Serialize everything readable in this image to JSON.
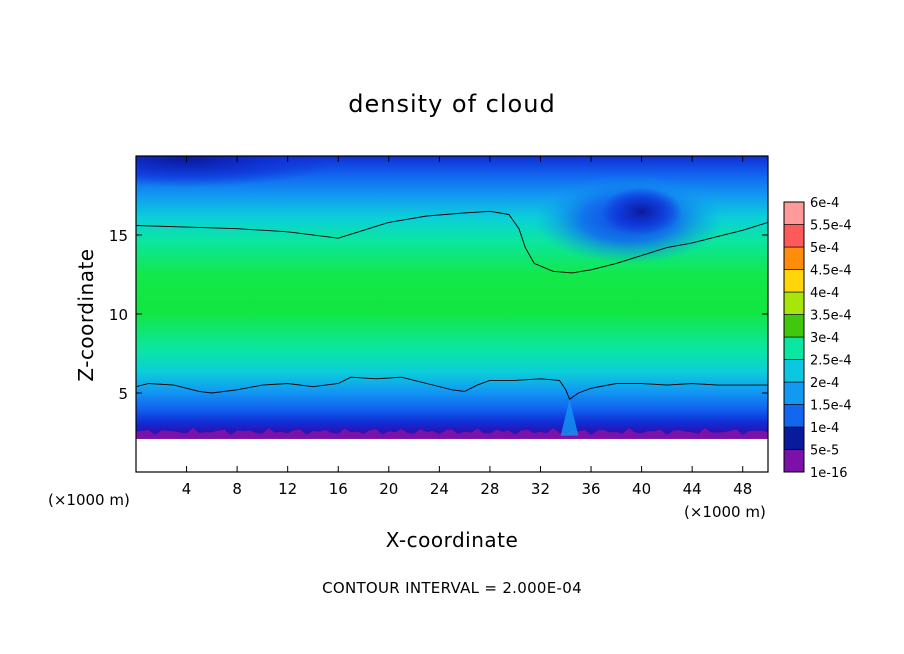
{
  "chart_data": {
    "type": "heatmap",
    "title": "density of cloud",
    "xlabel": "X-coordinate",
    "ylabel": "Z-coordinate",
    "x_unit": "(×1000 m)",
    "z_unit": "(×1000 m)",
    "xlim": [
      0,
      50
    ],
    "ylim": [
      0,
      20
    ],
    "x_ticks": [
      {
        "value": 4,
        "label": "4"
      },
      {
        "value": 8,
        "label": "8"
      },
      {
        "value": 12,
        "label": "12"
      },
      {
        "value": 16,
        "label": "16"
      },
      {
        "value": 20,
        "label": "20"
      },
      {
        "value": 24,
        "label": "24"
      },
      {
        "value": 28,
        "label": "28"
      },
      {
        "value": 32,
        "label": "32"
      },
      {
        "value": 36,
        "label": "36"
      },
      {
        "value": 40,
        "label": "40"
      },
      {
        "value": 44,
        "label": "44"
      },
      {
        "value": 48,
        "label": "48"
      }
    ],
    "y_ticks": [
      {
        "value": 5,
        "label": "5"
      },
      {
        "value": 10,
        "label": "10"
      },
      {
        "value": 15,
        "label": "15"
      }
    ],
    "colorbar": {
      "levels": [
        "1e-16",
        "5e-5",
        "1e-4",
        "1.5e-4",
        "2e-4",
        "2.5e-4",
        "3e-4",
        "3.5e-4",
        "4e-4",
        "4.5e-4",
        "5e-4",
        "5.5e-4",
        "6e-4"
      ],
      "colors": [
        "#7a12a8",
        "#0a1a9c",
        "#0f2fd6",
        "#1266f0",
        "#129af2",
        "#0bc8e0",
        "#0be6a0",
        "#16e64a",
        "#41c80e",
        "#a8e60a",
        "#ffd60a",
        "#ff8c0a",
        "#ff3a1a",
        "#ff5a5a",
        "#ff9a9a"
      ]
    },
    "contour_interval": "CONTOUR INTERVAL = 2.000E-04",
    "contours_2e-4": [
      {
        "name": "upper-contour",
        "points": [
          [
            0,
            15.6
          ],
          [
            4,
            15.5
          ],
          [
            8,
            15.4
          ],
          [
            12,
            15.2
          ],
          [
            15,
            14.9
          ],
          [
            16,
            14.8
          ],
          [
            18,
            15.3
          ],
          [
            20,
            15.8
          ],
          [
            23,
            16.2
          ],
          [
            26,
            16.4
          ],
          [
            28,
            16.5
          ],
          [
            29.5,
            16.3
          ],
          [
            30.3,
            15.4
          ],
          [
            30.8,
            14.2
          ],
          [
            31.5,
            13.2
          ],
          [
            33,
            12.7
          ],
          [
            34.5,
            12.6
          ],
          [
            36,
            12.8
          ],
          [
            38,
            13.2
          ],
          [
            40,
            13.7
          ],
          [
            42,
            14.2
          ],
          [
            44,
            14.5
          ],
          [
            46,
            14.9
          ],
          [
            48,
            15.3
          ],
          [
            50,
            15.8
          ]
        ]
      },
      {
        "name": "lower-contour",
        "points": [
          [
            0,
            5.4
          ],
          [
            1,
            5.6
          ],
          [
            3,
            5.5
          ],
          [
            5,
            5.1
          ],
          [
            6,
            5.0
          ],
          [
            8,
            5.2
          ],
          [
            10,
            5.5
          ],
          [
            12,
            5.6
          ],
          [
            14,
            5.4
          ],
          [
            16,
            5.6
          ],
          [
            17,
            6.0
          ],
          [
            19,
            5.9
          ],
          [
            21,
            6.0
          ],
          [
            23,
            5.6
          ],
          [
            25,
            5.2
          ],
          [
            26,
            5.1
          ],
          [
            27,
            5.5
          ],
          [
            28,
            5.8
          ],
          [
            30,
            5.8
          ],
          [
            32,
            5.9
          ],
          [
            33.5,
            5.8
          ],
          [
            34,
            5.2
          ],
          [
            34.3,
            4.6
          ],
          [
            35,
            5.0
          ],
          [
            36,
            5.3
          ],
          [
            38,
            5.6
          ],
          [
            40,
            5.6
          ],
          [
            42,
            5.5
          ],
          [
            44,
            5.6
          ],
          [
            46,
            5.5
          ],
          [
            48,
            5.5
          ],
          [
            50,
            5.5
          ]
        ]
      }
    ],
    "cloud_base_km": 2.1,
    "field_profile": [
      {
        "z": 2.2,
        "value": 1e-16
      },
      {
        "z": 2.8,
        "value": 5e-05
      },
      {
        "z": 3.6,
        "value": 0.0001
      },
      {
        "z": 4.4,
        "value": 0.00015
      },
      {
        "z": 5.3,
        "value": 0.0002
      },
      {
        "z": 7.5,
        "value": 0.00025
      },
      {
        "z": 10.0,
        "value": 0.00028
      },
      {
        "z": 13.5,
        "value": 0.00025
      },
      {
        "z": 15.6,
        "value": 0.0002
      },
      {
        "z": 17.5,
        "value": 0.00015
      },
      {
        "z": 19.0,
        "value": 0.0001
      },
      {
        "z": 20.0,
        "value": 5e-05
      }
    ]
  }
}
